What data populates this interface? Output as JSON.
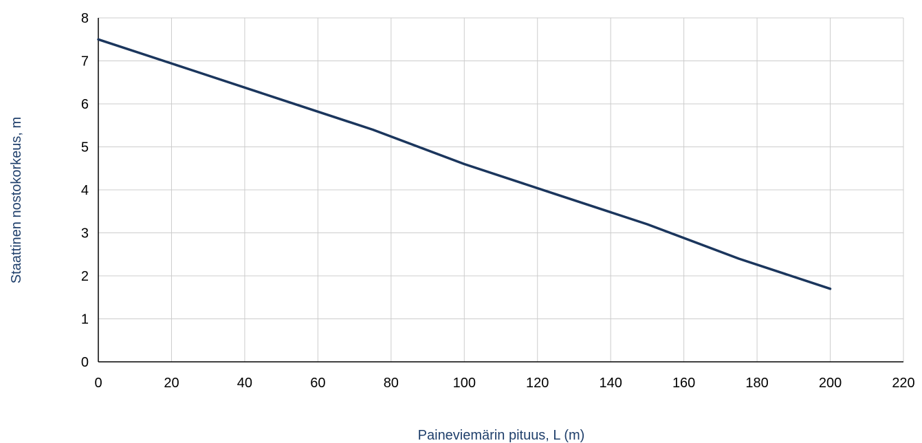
{
  "chart_data": {
    "type": "line",
    "title": "",
    "xlabel": "Paineviemärin pituus, L (m)",
    "ylabel": "Staattinen nostokorkeus, m",
    "xlim": [
      0,
      220
    ],
    "ylim": [
      0,
      8
    ],
    "xticks": [
      "0",
      "20",
      "40",
      "60",
      "80",
      "100",
      "120",
      "140",
      "160",
      "180",
      "200",
      "220"
    ],
    "yticks": [
      "0",
      "1",
      "2",
      "3",
      "4",
      "5",
      "6",
      "7",
      "8"
    ],
    "grid": true,
    "legend": "none",
    "colors": {
      "line": "#1b365d",
      "grid": "#cccccc",
      "axis": "#000000",
      "label": "#1f3f6b"
    },
    "series": [
      {
        "x": [
          0,
          25,
          50,
          75,
          100,
          125,
          150,
          175,
          200
        ],
        "y": [
          7.5,
          6.8,
          6.1,
          5.4,
          4.6,
          3.9,
          3.2,
          2.4,
          1.7
        ]
      }
    ]
  }
}
